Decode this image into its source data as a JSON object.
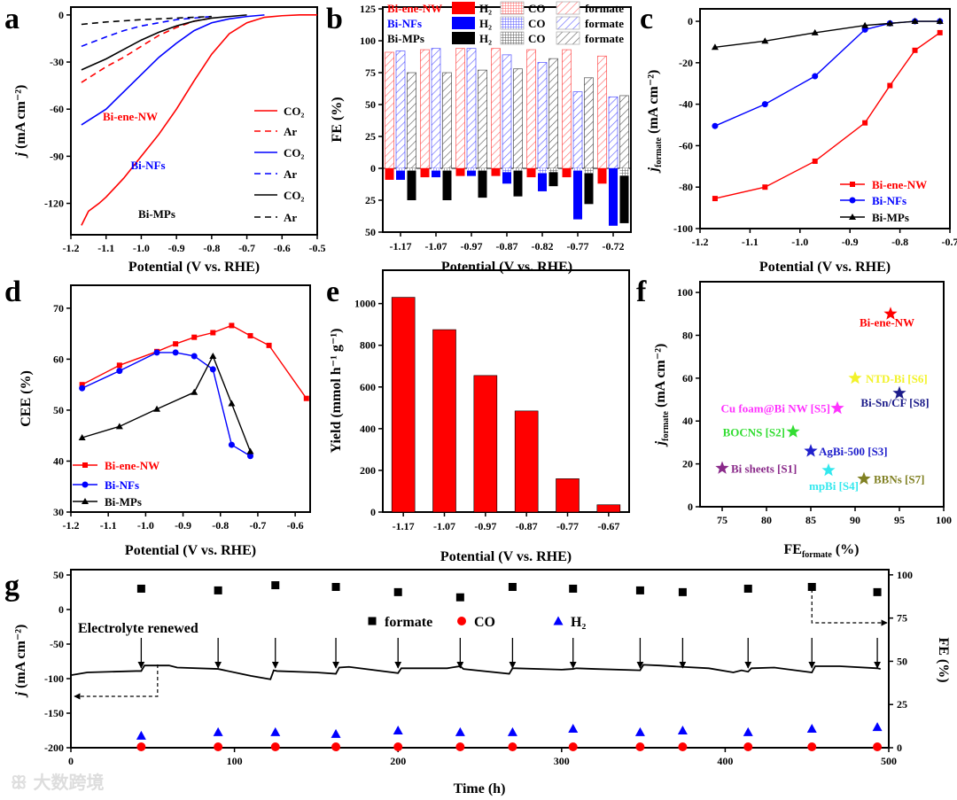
{
  "figure": {
    "watermark": "大数跨境"
  },
  "chart_data": [
    {
      "panel": "a",
      "type": "line",
      "xlabel": "Potential (V vs. RHE)",
      "ylabel": {
        "main": "j",
        "sub": "",
        "unit": " (mA cm⁻²)"
      },
      "xlim": [
        -1.2,
        -0.5
      ],
      "ylim": [
        -140,
        5
      ],
      "xticks": [
        "-1.2",
        "-1.1",
        "-1.0",
        "-0.9",
        "-0.8",
        "-0.7",
        "-0.6",
        "-0.5"
      ],
      "yticks": [
        "0",
        "-30",
        "-60",
        "-90",
        "-120"
      ],
      "legend": [
        {
          "group": "Bi-ene-NW",
          "color": "#ff0000",
          "items": [
            "CO₂",
            "Ar"
          ]
        },
        {
          "group": "Bi-NFs",
          "color": "#0000ff",
          "items": [
            "CO₂",
            "Ar"
          ]
        },
        {
          "group": "Bi-MPs",
          "color": "#000000",
          "items": [
            "CO₂",
            "Ar"
          ]
        }
      ],
      "series": [
        {
          "name": "Bi-ene-NW CO₂",
          "color": "#ff0000",
          "dash": false,
          "x": [
            -1.17,
            -1.15,
            -1.12,
            -1.1,
            -1.05,
            -1.0,
            -0.95,
            -0.9,
            -0.85,
            -0.8,
            -0.75,
            -0.7,
            -0.65,
            -0.6,
            -0.55,
            -0.5
          ],
          "y": [
            -134,
            -125,
            -120,
            -116,
            -104,
            -90,
            -76,
            -60,
            -42,
            -25,
            -12,
            -5,
            -1.5,
            -0.5,
            0,
            0
          ]
        },
        {
          "name": "Bi-ene-NW Ar",
          "color": "#ff0000",
          "dash": true,
          "x": [
            -1.17,
            -1.1,
            -1.05,
            -1.0,
            -0.95,
            -0.9,
            -0.85,
            -0.8
          ],
          "y": [
            -43,
            -33,
            -27,
            -20,
            -13,
            -8,
            -4,
            -2
          ]
        },
        {
          "name": "Bi-NFs CO₂",
          "color": "#0000ff",
          "dash": false,
          "x": [
            -1.17,
            -1.1,
            -1.05,
            -1.0,
            -0.95,
            -0.9,
            -0.85,
            -0.8,
            -0.75,
            -0.7,
            -0.65
          ],
          "y": [
            -70,
            -60,
            -49,
            -38,
            -27,
            -18,
            -10,
            -5,
            -2.5,
            -1,
            0
          ]
        },
        {
          "name": "Bi-NFs Ar",
          "color": "#0000ff",
          "dash": true,
          "x": [
            -1.17,
            -1.1,
            -1.05,
            -1.0,
            -0.95,
            -0.9,
            -0.85,
            -0.8
          ],
          "y": [
            -20,
            -14,
            -10,
            -7,
            -5,
            -3,
            -2,
            -1
          ]
        },
        {
          "name": "Bi-MPs CO₂",
          "color": "#000000",
          "dash": false,
          "x": [
            -1.17,
            -1.1,
            -1.05,
            -1.0,
            -0.95,
            -0.9,
            -0.85,
            -0.8,
            -0.75,
            -0.7
          ],
          "y": [
            -35,
            -28,
            -22,
            -16,
            -11,
            -7,
            -4,
            -2,
            -1,
            0
          ]
        },
        {
          "name": "Bi-MPs Ar",
          "color": "#000000",
          "dash": true,
          "x": [
            -1.17,
            -1.1,
            -1.0,
            -0.9,
            -0.8
          ],
          "y": [
            -6,
            -4.5,
            -3,
            -2,
            -1
          ]
        }
      ]
    },
    {
      "panel": "b",
      "type": "bar",
      "xlabel": "Potential (V vs. RHE)",
      "ylabel": "FE (%)",
      "ylim": [
        -50,
        126.4
      ],
      "categories": [
        "-1.17",
        "-1.07",
        "-0.97",
        "-0.87",
        "-0.82",
        "-0.77",
        "-0.72"
      ],
      "yticks": [
        125,
        100,
        75,
        50,
        25,
        0,
        -25,
        -50
      ],
      "ytick_labels": [
        "125",
        "100",
        "75",
        "50",
        "25",
        "0",
        "25",
        "50"
      ],
      "legend_items": {
        "h2": "H₂",
        "co": "CO",
        "formate": "formate"
      },
      "series": [
        {
          "name": "Bi-ene-NW",
          "color": "#ff0000",
          "formate": [
            91,
            93,
            94,
            94,
            93,
            93,
            88
          ],
          "co": [
            0,
            0,
            0,
            0,
            0,
            0,
            0
          ],
          "h2": [
            9,
            7,
            6,
            6,
            7,
            7,
            12
          ]
        },
        {
          "name": "Bi-NFs",
          "color": "#0000ff",
          "formate": [
            92,
            94,
            94,
            89,
            83,
            60,
            56
          ],
          "co": [
            2,
            2,
            2,
            3,
            4,
            2,
            0
          ],
          "h2": [
            7,
            5,
            4,
            9,
            14,
            38,
            45
          ]
        },
        {
          "name": "Bi-MPs",
          "color": "#000000",
          "formate": [
            75,
            75,
            77,
            78,
            86,
            71,
            57
          ],
          "co": [
            2,
            2,
            2,
            2,
            3,
            4,
            6
          ],
          "h2": [
            23,
            23,
            21,
            20,
            11,
            24,
            37
          ]
        }
      ]
    },
    {
      "panel": "c",
      "type": "line",
      "xlabel": "Potential (V vs. RHE)",
      "ylabel": {
        "main": "j",
        "sub": "formate",
        "unit": " (mA cm⁻²)"
      },
      "xlim": [
        -1.2,
        -0.7
      ],
      "ylim": [
        -100,
        6
      ],
      "xticks": [
        "-1.2",
        "-1.1",
        "-1.0",
        "-0.9",
        "-0.8",
        "-0.7"
      ],
      "yticks": [
        "0",
        "-20",
        "-40",
        "-60",
        "-80",
        "-100"
      ],
      "series": [
        {
          "name": "Bi-ene-NW",
          "color": "#ff0000",
          "marker": "square",
          "x": [
            -1.17,
            -1.07,
            -0.97,
            -0.87,
            -0.82,
            -0.77,
            -0.72
          ],
          "y": [
            -85.5,
            -80,
            -67.5,
            -49,
            -31,
            -14,
            -5.5
          ]
        },
        {
          "name": "Bi-NFs",
          "color": "#0000ff",
          "marker": "circle",
          "x": [
            -1.17,
            -1.07,
            -0.97,
            -0.87,
            -0.82,
            -0.77,
            -0.72
          ],
          "y": [
            -50.5,
            -40,
            -26.5,
            -4,
            -1,
            0,
            0
          ]
        },
        {
          "name": "Bi-MPs",
          "color": "#000000",
          "marker": "triangle",
          "x": [
            -1.17,
            -1.07,
            -0.97,
            -0.87,
            -0.82,
            -0.77,
            -0.72
          ],
          "y": [
            -12.5,
            -9.5,
            -5.5,
            -2,
            -1,
            0,
            0
          ]
        }
      ]
    },
    {
      "panel": "d",
      "type": "line",
      "xlabel": "Potential (V vs. RHE)",
      "ylabel": "CEE (%)",
      "xlim": [
        -1.2,
        -0.56
      ],
      "ylim": [
        30,
        74.5
      ],
      "xticks": [
        "-1.2",
        "-1.1",
        "-1.0",
        "-0.9",
        "-0.8",
        "-0.7",
        "-0.6"
      ],
      "yticks": [
        "30",
        "40",
        "50",
        "60",
        "70"
      ],
      "series": [
        {
          "name": "Bi-ene-NW",
          "color": "#ff0000",
          "marker": "square",
          "x": [
            -1.17,
            -1.07,
            -0.97,
            -0.92,
            -0.87,
            -0.82,
            -0.77,
            -0.72,
            -0.67,
            -0.57
          ],
          "y": [
            55,
            58.8,
            61.5,
            63,
            64.3,
            65.2,
            66.6,
            64.6,
            62.7,
            52.3
          ]
        },
        {
          "name": "Bi-NFs",
          "color": "#0000ff",
          "marker": "circle",
          "x": [
            -1.17,
            -1.07,
            -0.97,
            -0.92,
            -0.87,
            -0.82,
            -0.77,
            -0.72
          ],
          "y": [
            54.3,
            57.7,
            61.3,
            61.3,
            60.6,
            58,
            43.2,
            41
          ]
        },
        {
          "name": "Bi-MPs",
          "color": "#000000",
          "marker": "triangle",
          "x": [
            -1.17,
            -1.07,
            -0.97,
            -0.87,
            -0.82,
            -0.77,
            -0.72
          ],
          "y": [
            44.6,
            46.8,
            50.2,
            53.5,
            60.6,
            51.3,
            41.9
          ]
        }
      ]
    },
    {
      "panel": "e",
      "type": "bar",
      "xlabel": "Potential (V vs. RHE)",
      "ylabel": "Yield (mmol h⁻¹ g⁻¹)",
      "ylim": [
        0,
        1160
      ],
      "categories": [
        "-1.17",
        "-1.07",
        "-0.97",
        "-0.87",
        "-0.77",
        "-0.67"
      ],
      "values": [
        1030,
        875,
        655,
        485,
        160,
        35
      ],
      "color": "#ff0000",
      "yticks": [
        "0",
        "200",
        "400",
        "600",
        "800",
        "1000"
      ]
    },
    {
      "panel": "f",
      "type": "scatter",
      "xlabel": {
        "main": "FE",
        "sub": "formate",
        "unit": " (%)"
      },
      "ylabel": {
        "main": "j",
        "sub": "formate",
        "unit": " (mA cm⁻²)"
      },
      "xlim": [
        72.5,
        100
      ],
      "ylim": [
        0,
        105
      ],
      "xticks": [
        "75",
        "80",
        "85",
        "90",
        "95",
        "100"
      ],
      "yticks": [
        "0",
        "20",
        "40",
        "60",
        "80",
        "100"
      ],
      "points": [
        {
          "label": "Bi-ene-NW",
          "x": 94,
          "y": 90,
          "color": "#ff0000"
        },
        {
          "label": "NTD-Bi [S6]",
          "x": 90,
          "y": 60,
          "color": "#f2f22a"
        },
        {
          "label": "Bi-Sn/CF [S8]",
          "x": 95,
          "y": 53,
          "color": "#1c1c8a"
        },
        {
          "label": "Cu foam@Bi NW [S5]",
          "x": 88,
          "y": 46,
          "color": "#ff33ff"
        },
        {
          "label": "BOCNS [S2]",
          "x": 83,
          "y": 35,
          "color": "#33dd33"
        },
        {
          "label": "AgBi-500 [S3]",
          "x": 85,
          "y": 26,
          "color": "#2020cc"
        },
        {
          "label": "Bi sheets [S1]",
          "x": 75,
          "y": 18,
          "color": "#8a2a8a"
        },
        {
          "label": "mpBi [S4]",
          "x": 87,
          "y": 17,
          "color": "#33e8ee"
        },
        {
          "label": "BBNs [S7]",
          "x": 91,
          "y": 13,
          "color": "#808022"
        }
      ]
    },
    {
      "panel": "g",
      "type": "line",
      "xlabel": "Time (h)",
      "ylabel": {
        "main": "j",
        "sub": "",
        "unit": " (mA cm⁻²)"
      },
      "ylabel_right": "FE (%)",
      "xlim": [
        0,
        500
      ],
      "ylim": [
        -200,
        57.7
      ],
      "ylim_right": [
        0,
        103
      ],
      "xticks": [
        "0",
        "100",
        "200",
        "300",
        "400",
        "500"
      ],
      "yticks": [
        "50",
        "0",
        "-50",
        "-100",
        "-150",
        "-200"
      ],
      "yticks_right": [
        "0",
        "25",
        "50",
        "75",
        "100"
      ],
      "annotation": "Electrolyte renewed",
      "renew_times": [
        43,
        90,
        125,
        162,
        200,
        238,
        270,
        307,
        348,
        374,
        414,
        453,
        493
      ],
      "current": {
        "x": [
          0,
          10,
          40,
          43,
          45,
          60,
          65,
          90,
          110,
          122,
          124,
          126,
          150,
          162,
          164,
          170,
          200,
          202,
          230,
          238,
          240,
          268,
          270,
          272,
          300,
          307,
          309,
          320,
          348,
          350,
          360,
          374,
          390,
          405,
          410,
          414,
          416,
          430,
          453,
          455,
          470,
          493,
          495
        ],
        "y": [
          -95,
          -91,
          -89,
          -89,
          -81,
          -81,
          -84,
          -86,
          -96,
          -101,
          -88,
          -89,
          -91,
          -93,
          -84,
          -83,
          -92,
          -85,
          -85,
          -82,
          -86,
          -93,
          -85,
          -85,
          -87,
          -86,
          -85,
          -86,
          -88,
          -80,
          -81,
          -83,
          -85,
          -91,
          -88,
          -90,
          -85,
          -84,
          -91,
          -82,
          -82,
          -85,
          -86
        ]
      },
      "series": [
        {
          "name": "formate",
          "color": "#000000",
          "marker": "square",
          "y": [
            92,
            91,
            94,
            93,
            90,
            87,
            93,
            92,
            91,
            90,
            92,
            93,
            90
          ]
        },
        {
          "name": "CO",
          "color": "#ff0000",
          "marker": "circle",
          "y": [
            0.5,
            0.5,
            0.5,
            0.5,
            0.5,
            0.5,
            0.5,
            0.5,
            0.5,
            0.5,
            0.5,
            0.5,
            0.5
          ]
        },
        {
          "name": "H₂",
          "color": "#0000ff",
          "marker": "triangle",
          "y": [
            7,
            9,
            9,
            8,
            10,
            9,
            9,
            11,
            9,
            10,
            9,
            11,
            12
          ]
        }
      ]
    }
  ]
}
